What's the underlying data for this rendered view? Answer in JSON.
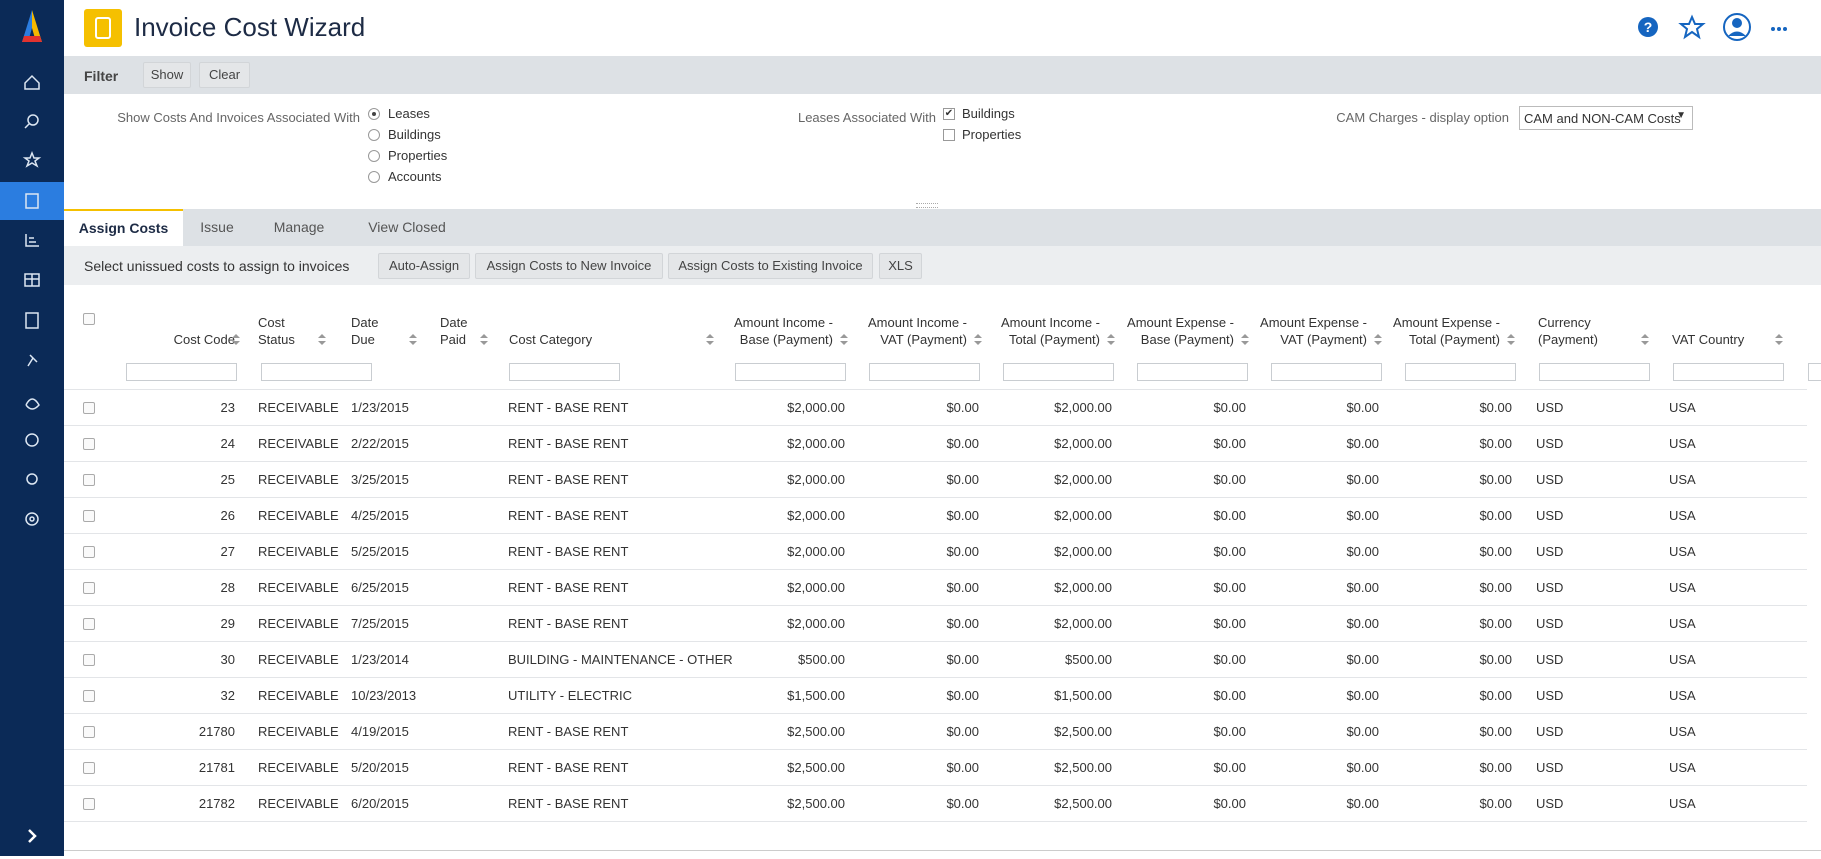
{
  "header": {
    "title": "Invoice Cost Wizard"
  },
  "filter": {
    "title": "Filter",
    "buttons": [
      "Show",
      "Clear"
    ],
    "show_costs": {
      "label": "Show Costs And Invoices Associated With",
      "options": [
        "Leases",
        "Buildings",
        "Properties",
        "Accounts"
      ],
      "selected": 0
    },
    "leases_associated": {
      "label": "Leases Associated With",
      "options": [
        "Buildings",
        "Properties"
      ],
      "checked": [
        true,
        false
      ]
    },
    "cam": {
      "label": "CAM Charges - display option",
      "value": "CAM and NON-CAM Costs"
    }
  },
  "tabs": {
    "items": [
      "Assign Costs",
      "Issue",
      "Manage",
      "View Closed"
    ],
    "active": 0
  },
  "toolbar": {
    "label": "Select unissued costs to assign to invoices",
    "buttons": [
      "Auto-Assign",
      "Assign Costs to New Invoice",
      "Assign Costs to Existing Invoice",
      "XLS"
    ]
  },
  "table": {
    "columns": [
      [
        "Cost Code"
      ],
      [
        "Cost",
        "Status"
      ],
      [
        "Date",
        "Due"
      ],
      [
        "Date",
        "Paid"
      ],
      [
        "Cost Category"
      ],
      [
        "Amount Income -",
        "Base (Payment)"
      ],
      [
        "Amount Income -",
        "VAT (Payment)"
      ],
      [
        "Amount Income -",
        "Total (Payment)"
      ],
      [
        "Amount Expense -",
        "Base (Payment)"
      ],
      [
        "Amount Expense -",
        "VAT (Payment)"
      ],
      [
        "Amount Expense -",
        "Total (Payment)"
      ],
      [
        "Currency",
        "(Payment)"
      ],
      [
        "VAT Country"
      ]
    ],
    "rows": [
      {
        "code": "23",
        "status": "RECEIVABLE",
        "due": "1/23/2015",
        "category": "RENT - BASE RENT",
        "amounts": [
          "$2,000.00",
          "$0.00",
          "$2,000.00",
          "$0.00",
          "$0.00",
          "$0.00"
        ],
        "currency": "USD",
        "country": "USA"
      },
      {
        "code": "24",
        "status": "RECEIVABLE",
        "due": "2/22/2015",
        "category": "RENT - BASE RENT",
        "amounts": [
          "$2,000.00",
          "$0.00",
          "$2,000.00",
          "$0.00",
          "$0.00",
          "$0.00"
        ],
        "currency": "USD",
        "country": "USA"
      },
      {
        "code": "25",
        "status": "RECEIVABLE",
        "due": "3/25/2015",
        "category": "RENT - BASE RENT",
        "amounts": [
          "$2,000.00",
          "$0.00",
          "$2,000.00",
          "$0.00",
          "$0.00",
          "$0.00"
        ],
        "currency": "USD",
        "country": "USA"
      },
      {
        "code": "26",
        "status": "RECEIVABLE",
        "due": "4/25/2015",
        "category": "RENT - BASE RENT",
        "amounts": [
          "$2,000.00",
          "$0.00",
          "$2,000.00",
          "$0.00",
          "$0.00",
          "$0.00"
        ],
        "currency": "USD",
        "country": "USA"
      },
      {
        "code": "27",
        "status": "RECEIVABLE",
        "due": "5/25/2015",
        "category": "RENT - BASE RENT",
        "amounts": [
          "$2,000.00",
          "$0.00",
          "$2,000.00",
          "$0.00",
          "$0.00",
          "$0.00"
        ],
        "currency": "USD",
        "country": "USA"
      },
      {
        "code": "28",
        "status": "RECEIVABLE",
        "due": "6/25/2015",
        "category": "RENT - BASE RENT",
        "amounts": [
          "$2,000.00",
          "$0.00",
          "$2,000.00",
          "$0.00",
          "$0.00",
          "$0.00"
        ],
        "currency": "USD",
        "country": "USA"
      },
      {
        "code": "29",
        "status": "RECEIVABLE",
        "due": "7/25/2015",
        "category": "RENT - BASE RENT",
        "amounts": [
          "$2,000.00",
          "$0.00",
          "$2,000.00",
          "$0.00",
          "$0.00",
          "$0.00"
        ],
        "currency": "USD",
        "country": "USA"
      },
      {
        "code": "30",
        "status": "RECEIVABLE",
        "due": "1/23/2014",
        "category": "BUILDING - MAINTENANCE - OTHER",
        "amounts": [
          "$500.00",
          "$0.00",
          "$500.00",
          "$0.00",
          "$0.00",
          "$0.00"
        ],
        "currency": "USD",
        "country": "USA"
      },
      {
        "code": "32",
        "status": "RECEIVABLE",
        "due": "10/23/2013",
        "category": "UTILITY - ELECTRIC",
        "amounts": [
          "$1,500.00",
          "$0.00",
          "$1,500.00",
          "$0.00",
          "$0.00",
          "$0.00"
        ],
        "currency": "USD",
        "country": "USA"
      },
      {
        "code": "21780",
        "status": "RECEIVABLE",
        "due": "4/19/2015",
        "category": "RENT - BASE RENT",
        "amounts": [
          "$2,500.00",
          "$0.00",
          "$2,500.00",
          "$0.00",
          "$0.00",
          "$0.00"
        ],
        "currency": "USD",
        "country": "USA"
      },
      {
        "code": "21781",
        "status": "RECEIVABLE",
        "due": "5/20/2015",
        "category": "RENT - BASE RENT",
        "amounts": [
          "$2,500.00",
          "$0.00",
          "$2,500.00",
          "$0.00",
          "$0.00",
          "$0.00"
        ],
        "currency": "USD",
        "country": "USA"
      },
      {
        "code": "21782",
        "status": "RECEIVABLE",
        "due": "6/20/2015",
        "category": "RENT - BASE RENT",
        "amounts": [
          "$2,500.00",
          "$0.00",
          "$2,500.00",
          "$0.00",
          "$0.00",
          "$0.00"
        ],
        "currency": "USD",
        "country": "USA"
      }
    ]
  }
}
